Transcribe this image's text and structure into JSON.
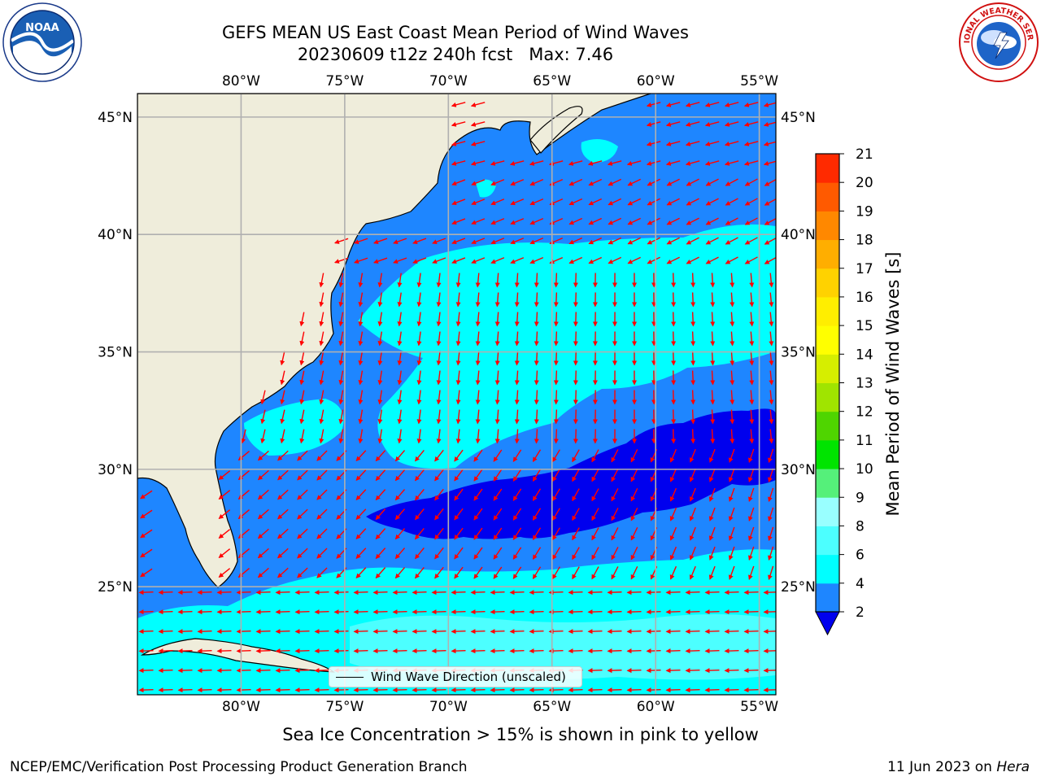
{
  "title": {
    "line1": "GEFS MEAN US East Coast Mean Period of Wind Waves",
    "line2": "20230609 t12z 240h fcst   Max: 7.46"
  },
  "map": {
    "lon_labels": [
      "80°W",
      "75°W",
      "70°W",
      "65°W",
      "60°W",
      "55°W"
    ],
    "lat_labels": [
      "45°N",
      "40°N",
      "35°N",
      "30°N",
      "25°N"
    ],
    "lon_values": [
      -80,
      -75,
      -70,
      -65,
      -60,
      -55
    ],
    "lat_values": [
      45,
      40,
      35,
      30,
      25
    ],
    "lon_range": [
      -85,
      -54.2
    ],
    "lat_range": [
      20.4,
      46
    ],
    "land_color": "#efeddb",
    "ocean_colors": {
      "period_2_4": "#1e86ff",
      "period_4_6": "#00ffff",
      "below_2": "#0000ee"
    },
    "arrow_color": "#ff0000",
    "legend_label": "Wind Wave Direction (unscaled)"
  },
  "colorbar": {
    "title": "Mean Period of Wind Waves [s]",
    "ticks": [
      "2",
      "4",
      "6",
      "8",
      "9",
      "10",
      "11",
      "12",
      "13",
      "14",
      "15",
      "16",
      "17",
      "18",
      "19",
      "20",
      "21"
    ],
    "colors": [
      "#1e86ff",
      "#00ffff",
      "#4cffff",
      "#99ffff",
      "#55f07a",
      "#00e400",
      "#4fd500",
      "#a0e400",
      "#d6ee00",
      "#ffff00",
      "#ffee00",
      "#ffd200",
      "#ffae00",
      "#ff8800",
      "#ff5a00",
      "#ff2a00"
    ],
    "underflow_color": "#0000ee"
  },
  "note": "Sea Ice Concentration > 15% is shown in pink to yellow",
  "footer": {
    "left": "NCEP/EMC/Verification Post Processing Product Generation Branch",
    "right_prefix": "11 Jun 2023 on ",
    "right_host": "Hera"
  },
  "logos": {
    "noaa_text": "NOAA",
    "nws_text": "NATIONAL WEATHER SERVICE"
  }
}
